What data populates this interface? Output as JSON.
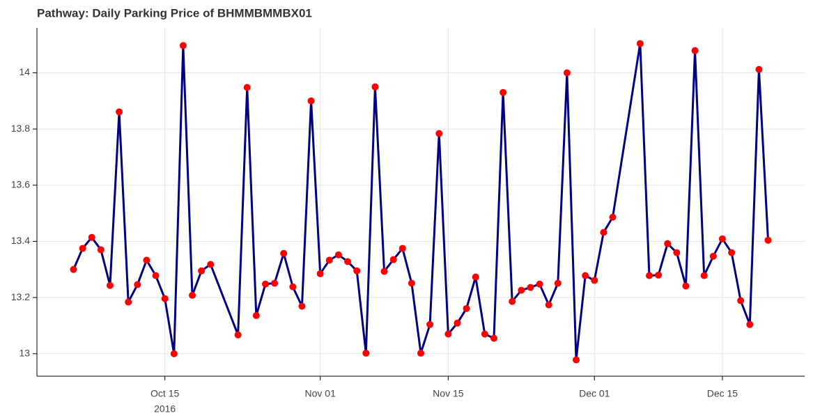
{
  "chart_data": {
    "type": "line",
    "title": "Pathway: Daily Parking Price of BHMMBMMBX01",
    "x": [
      "2016-10-05",
      "2016-10-06",
      "2016-10-07",
      "2016-10-08",
      "2016-10-09",
      "2016-10-10",
      "2016-10-11",
      "2016-10-12",
      "2016-10-13",
      "2016-10-14",
      "2016-10-15",
      "2016-10-16",
      "2016-10-17",
      "2016-10-18",
      "2016-10-19",
      "2016-10-20",
      "2016-10-23",
      "2016-10-24",
      "2016-10-25",
      "2016-10-26",
      "2016-10-27",
      "2016-10-28",
      "2016-10-29",
      "2016-10-30",
      "2016-10-31",
      "2016-11-01",
      "2016-11-02",
      "2016-11-03",
      "2016-11-04",
      "2016-11-05",
      "2016-11-06",
      "2016-11-07",
      "2016-11-08",
      "2016-11-09",
      "2016-11-10",
      "2016-11-11",
      "2016-11-12",
      "2016-11-13",
      "2016-11-14",
      "2016-11-15",
      "2016-11-16",
      "2016-11-17",
      "2016-11-18",
      "2016-11-19",
      "2016-11-20",
      "2016-11-21",
      "2016-11-22",
      "2016-11-23",
      "2016-11-24",
      "2016-11-25",
      "2016-11-26",
      "2016-11-27",
      "2016-11-28",
      "2016-11-29",
      "2016-11-30",
      "2016-12-01",
      "2016-12-02",
      "2016-12-03",
      "2016-12-06",
      "2016-12-07",
      "2016-12-08",
      "2016-12-09",
      "2016-12-10",
      "2016-12-11",
      "2016-12-12",
      "2016-12-13",
      "2016-12-14",
      "2016-12-15",
      "2016-12-16",
      "2016-12-17",
      "2016-12-18",
      "2016-12-19",
      "2016-12-20"
    ],
    "values": [
      13.3,
      13.375,
      13.414,
      13.37,
      13.243,
      13.861,
      13.184,
      13.246,
      13.333,
      13.278,
      13.196,
      13.0,
      14.097,
      13.208,
      13.295,
      13.318,
      13.067,
      13.948,
      13.136,
      13.248,
      13.251,
      13.357,
      13.238,
      13.169,
      13.9,
      13.285,
      13.333,
      13.352,
      13.328,
      13.295,
      13.002,
      13.95,
      13.293,
      13.335,
      13.375,
      13.251,
      13.002,
      13.104,
      13.784,
      13.07,
      13.109,
      13.161,
      13.273,
      13.07,
      13.055,
      13.93,
      13.186,
      13.226,
      13.236,
      13.248,
      13.174,
      13.251,
      14.0,
      12.978,
      13.278,
      13.261,
      13.432,
      13.486,
      14.104,
      13.278,
      13.28,
      13.392,
      13.36,
      13.241,
      14.079,
      13.278,
      13.347,
      13.409,
      13.36,
      13.189,
      13.104,
      14.012,
      13.404
    ],
    "line_color": "#000080",
    "marker_color": "#ff0000",
    "xlim": [
      "2016-10-01",
      "2016-12-24"
    ],
    "xticks": [
      {
        "value": "2016-10-15",
        "label": "Oct 15"
      },
      {
        "value": "2016-11-01",
        "label": "Nov 01"
      },
      {
        "value": "2016-11-15",
        "label": "Nov 15"
      },
      {
        "value": "2016-12-01",
        "label": "Dec 01"
      },
      {
        "value": "2016-12-15",
        "label": "Dec 15"
      }
    ],
    "year_label": "2016",
    "ylim": [
      12.92,
      14.16
    ],
    "yticks": [
      13,
      13.2,
      13.4,
      13.6,
      13.8,
      14
    ],
    "grid": true
  }
}
